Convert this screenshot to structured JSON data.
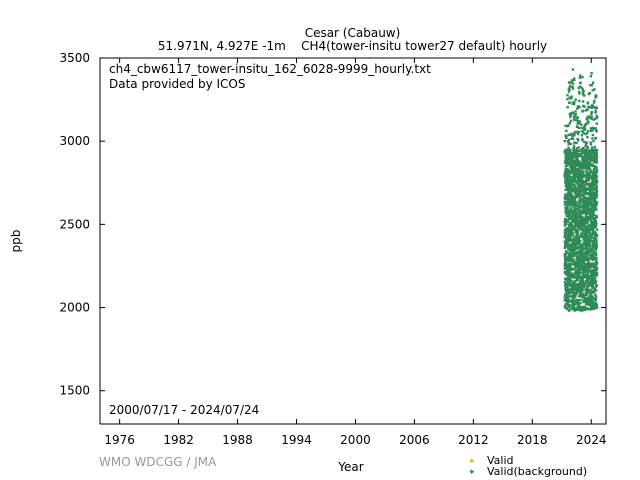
{
  "header": {
    "station": "Cesar (Cabauw)",
    "location_line": "51.971N, 4.927E -1m    CH4(tower-insitu tower27 default) hourly"
  },
  "annotations": {
    "filename": "ch4_cbw6117_tower-insitu_162_6028-9999_hourly.txt",
    "provider": "Data provided by ICOS",
    "period": "2000/07/17 - 2024/07/24"
  },
  "footer": {
    "credit": "WMO WDCGG / JMA"
  },
  "colors": {
    "valid": "#e6b800",
    "valid_background": "#2e8b57",
    "credit": "#999999"
  },
  "chart_data": {
    "type": "scatter",
    "xlabel": "Year",
    "ylabel": "ppb",
    "xlim": [
      1974,
      2025.5
    ],
    "ylim": [
      1300,
      3500
    ],
    "x_ticks": [
      1976,
      1982,
      1988,
      1994,
      2000,
      2006,
      2012,
      2018,
      2024
    ],
    "y_ticks": [
      1500,
      2000,
      2500,
      3000,
      3500
    ],
    "legend": {
      "placement": "bottom-right",
      "entries": [
        "Valid",
        "Valid(background)"
      ]
    },
    "series": [
      {
        "name": "Valid",
        "points": []
      },
      {
        "name": "Valid(background)",
        "x_range": [
          2021.3,
          2024.6
        ],
        "y_core_range": [
          1980,
          2950
        ],
        "envelope": [
          {
            "x": 2021.4,
            "min": 2000,
            "max": 3200
          },
          {
            "x": 2022.0,
            "min": 1960,
            "max": 3480
          },
          {
            "x": 2022.5,
            "min": 1990,
            "max": 3300
          },
          {
            "x": 2023.0,
            "min": 1980,
            "max": 3460
          },
          {
            "x": 2023.5,
            "min": 1990,
            "max": 3150
          },
          {
            "x": 2024.0,
            "min": 1990,
            "max": 3420
          },
          {
            "x": 2024.5,
            "min": 2000,
            "max": 3300
          }
        ]
      }
    ]
  }
}
